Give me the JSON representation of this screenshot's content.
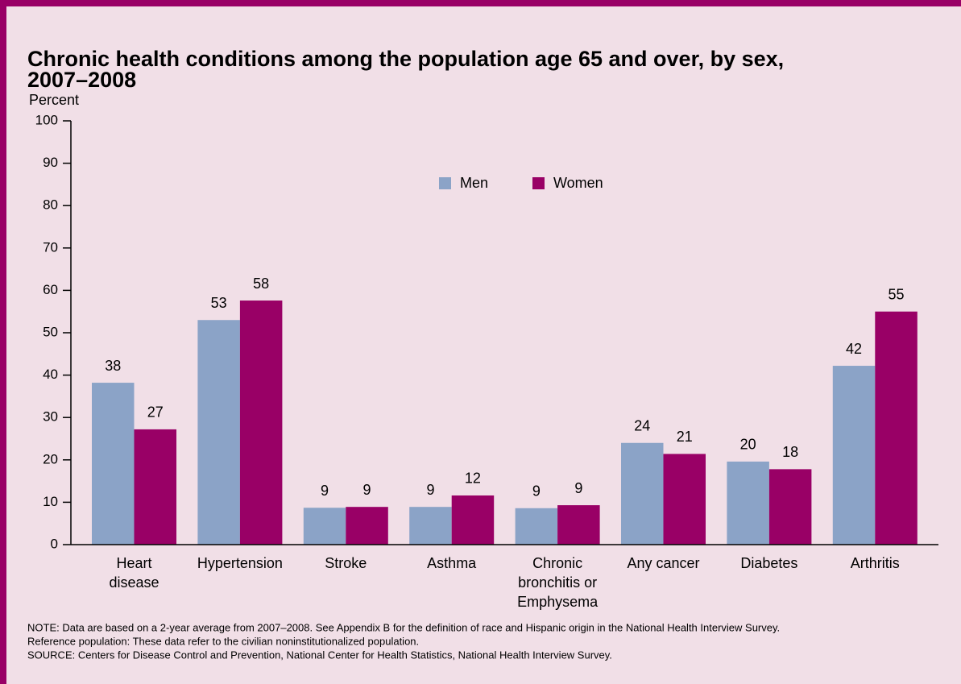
{
  "chart_data": {
    "type": "bar",
    "title": [
      "Chronic health conditions among the population age 65 and over, by sex,",
      "2007–2008"
    ],
    "y_label": "Percent",
    "categories": [
      [
        "Heart",
        "disease"
      ],
      [
        "Hypertension"
      ],
      [
        "Stroke"
      ],
      [
        "Asthma"
      ],
      [
        "Chronic",
        "bronchitis or",
        "Emphysema"
      ],
      [
        "Any cancer"
      ],
      [
        "Diabetes"
      ],
      [
        "Arthritis"
      ]
    ],
    "series": [
      {
        "name": "Men",
        "color": "#8ba3c7",
        "values": [
          38.2,
          53,
          8.7,
          8.9,
          8.6,
          24,
          19.6,
          42.2
        ],
        "value_labels": [
          "38",
          "53",
          "9",
          "9",
          "9",
          "24",
          "20",
          "42"
        ]
      },
      {
        "name": "Women",
        "color": "#990066",
        "values": [
          27.2,
          57.6,
          8.9,
          11.6,
          9.3,
          21.4,
          17.8,
          55
        ],
        "value_labels": [
          "27",
          "58",
          "9",
          "12",
          "9",
          "21",
          "18",
          "55"
        ]
      }
    ],
    "ylim": [
      0,
      100
    ],
    "yticks": [
      0,
      10,
      20,
      30,
      40,
      50,
      60,
      70,
      80,
      90,
      100
    ],
    "notes": [
      "NOTE: Data are based on a 2-year average from 2007–2008. See Appendix B for the definition of race and Hispanic origin in the National Health Interview Survey.",
      "Reference population: These data refer to the civilian noninstitutionalized population.",
      "SOURCE: Centers for Disease Control and Prevention, National Center for Health Statistics, National Health Interview Survey."
    ]
  }
}
